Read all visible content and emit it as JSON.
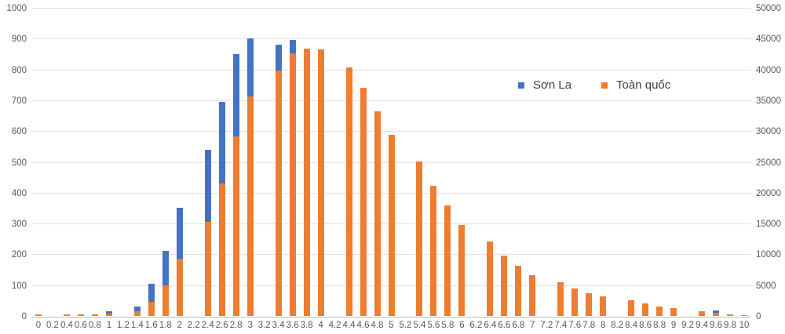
{
  "chart_data": {
    "type": "bar",
    "title": "",
    "xlabel": "",
    "ylabel_left": "",
    "ylabel_right": "",
    "axes": {
      "left": {
        "min": 0,
        "max": 1000,
        "step": 100,
        "ticks": [
          "0",
          "100",
          "200",
          "300",
          "400",
          "500",
          "600",
          "700",
          "800",
          "900",
          "1000"
        ]
      },
      "right": {
        "min": 0,
        "max": 50000,
        "step": 5000,
        "ticks": [
          "0",
          "5000",
          "10000",
          "15000",
          "20000",
          "25000",
          "30000",
          "35000",
          "40000",
          "45000",
          "50000"
        ]
      }
    },
    "grid": true,
    "legend_position": "inside-top-right",
    "series": [
      {
        "name": "Sơn La",
        "color": "#4472C4",
        "axis": "left"
      },
      {
        "name": "Toàn quốc",
        "color": "#ED7D31",
        "axis": "right"
      }
    ],
    "points": [
      {
        "x": "0",
        "son_la": null,
        "toan_quoc": 250
      },
      {
        "x": "0.2",
        "son_la": null,
        "toan_quoc": null
      },
      {
        "x": "0.4",
        "son_la": null,
        "toan_quoc": 250
      },
      {
        "x": "0.6",
        "son_la": null,
        "toan_quoc": 250
      },
      {
        "x": "0.8",
        "son_la": null,
        "toan_quoc": 250
      },
      {
        "x": "1",
        "son_la": 16,
        "toan_quoc": 350
      },
      {
        "x": "1.2",
        "son_la": null,
        "toan_quoc": null
      },
      {
        "x": "1.4",
        "son_la": 30,
        "toan_quoc": 750
      },
      {
        "x": "1.6",
        "son_la": 104,
        "toan_quoc": 2250
      },
      {
        "x": "1.8",
        "son_la": 212,
        "toan_quoc": 5000
      },
      {
        "x": "2",
        "son_la": 350,
        "toan_quoc": 9300
      },
      {
        "x": "2.2",
        "son_la": null,
        "toan_quoc": null
      },
      {
        "x": "2.4",
        "son_la": 540,
        "toan_quoc": 15300
      },
      {
        "x": "2.6",
        "son_la": 695,
        "toan_quoc": 21550
      },
      {
        "x": "2.8",
        "son_la": 850,
        "toan_quoc": 29200
      },
      {
        "x": "3",
        "son_la": 900,
        "toan_quoc": 35650
      },
      {
        "x": "3.2",
        "son_la": null,
        "toan_quoc": null
      },
      {
        "x": "3.4",
        "son_la": 880,
        "toan_quoc": 39850
      },
      {
        "x": "3.6",
        "son_la": 896,
        "toan_quoc": 42600
      },
      {
        "x": "3.8",
        "son_la": null,
        "toan_quoc": 43400
      },
      {
        "x": "4",
        "son_la": null,
        "toan_quoc": 43250
      },
      {
        "x": "4.2",
        "son_la": null,
        "toan_quoc": null
      },
      {
        "x": "4.4",
        "son_la": null,
        "toan_quoc": 40300
      },
      {
        "x": "4.6",
        "son_la": null,
        "toan_quoc": 37000
      },
      {
        "x": "4.8",
        "son_la": null,
        "toan_quoc": 33200
      },
      {
        "x": "5",
        "son_la": null,
        "toan_quoc": 29350
      },
      {
        "x": "5.2",
        "son_la": null,
        "toan_quoc": null
      },
      {
        "x": "5.4",
        "son_la": null,
        "toan_quoc": 25100
      },
      {
        "x": "5.6",
        "son_la": null,
        "toan_quoc": 21150
      },
      {
        "x": "5.8",
        "son_la": null,
        "toan_quoc": 17900
      },
      {
        "x": "6",
        "son_la": null,
        "toan_quoc": 14800
      },
      {
        "x": "6.2",
        "son_la": null,
        "toan_quoc": null
      },
      {
        "x": "6.4",
        "son_la": null,
        "toan_quoc": 12050
      },
      {
        "x": "6.6",
        "son_la": null,
        "toan_quoc": 9750
      },
      {
        "x": "6.8",
        "son_la": null,
        "toan_quoc": 8100
      },
      {
        "x": "7",
        "son_la": null,
        "toan_quoc": 6600
      },
      {
        "x": "7.2",
        "son_la": null,
        "toan_quoc": null
      },
      {
        "x": "7.4",
        "son_la": null,
        "toan_quoc": 5450
      },
      {
        "x": "7.6",
        "son_la": null,
        "toan_quoc": 4450
      },
      {
        "x": "7.8",
        "son_la": null,
        "toan_quoc": 3700
      },
      {
        "x": "8",
        "son_la": null,
        "toan_quoc": 3150
      },
      {
        "x": "8.2",
        "son_la": null,
        "toan_quoc": null
      },
      {
        "x": "8.4",
        "son_la": null,
        "toan_quoc": 2600
      },
      {
        "x": "8.6",
        "son_la": null,
        "toan_quoc": 2100
      },
      {
        "x": "8.8",
        "son_la": null,
        "toan_quoc": 1550
      },
      {
        "x": "9",
        "son_la": null,
        "toan_quoc": 1250
      },
      {
        "x": "9.2",
        "son_la": null,
        "toan_quoc": null
      },
      {
        "x": "9.4",
        "son_la": null,
        "toan_quoc": 750
      },
      {
        "x": "9.6",
        "son_la": 17,
        "toan_quoc": 450
      },
      {
        "x": "9.8",
        "son_la": null,
        "toan_quoc": 200
      },
      {
        "x": "10",
        "son_la": null,
        "toan_quoc": 100
      }
    ],
    "colors": {
      "son_la": "#4472C4",
      "toan_quoc": "#ED7D31",
      "gridline": "#e2e2e2",
      "axis_line": "#bfbfbf",
      "tick_text": "#595959"
    }
  }
}
